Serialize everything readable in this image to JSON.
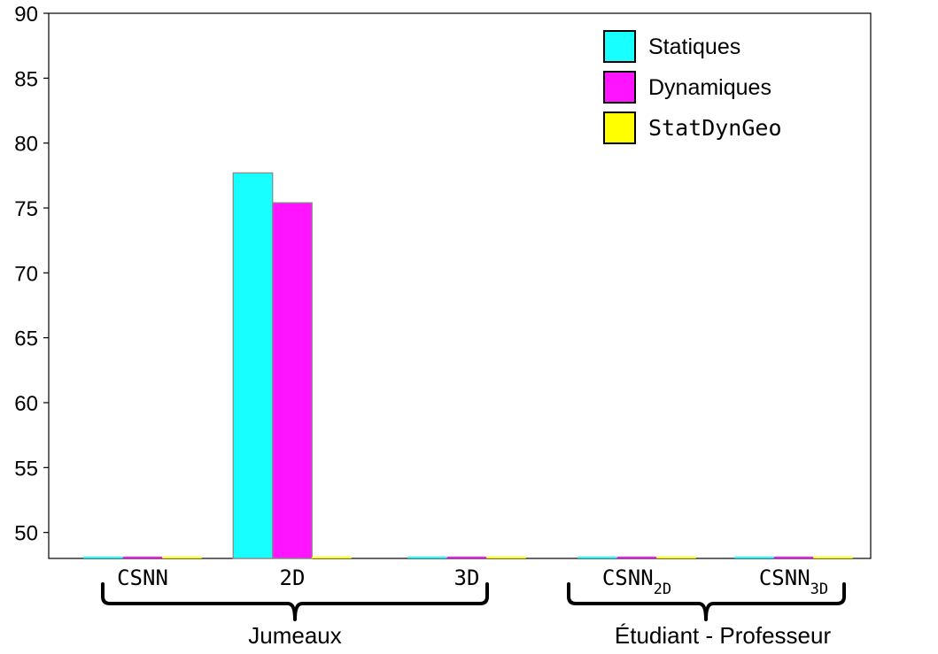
{
  "chart_data": {
    "type": "bar",
    "categories": [
      {
        "label": "CSNN",
        "sub": ""
      },
      {
        "label": "2D",
        "sub": ""
      },
      {
        "label": "3D",
        "sub": ""
      },
      {
        "label": "CSNN",
        "sub": "2D"
      },
      {
        "label": "CSNN",
        "sub": "3D"
      }
    ],
    "series": [
      {
        "name": "Statiques",
        "color": "#17ffff",
        "values": [
          null,
          77.7,
          null,
          null,
          null
        ]
      },
      {
        "name": "Dynamiques",
        "color": "#ff14ff",
        "values": [
          null,
          75.4,
          null,
          null,
          null
        ]
      },
      {
        "name": "StatDynGeo",
        "color": "#ffff00",
        "values": [
          null,
          null,
          null,
          null,
          null
        ]
      }
    ],
    "ylim": [
      48,
      90
    ],
    "yticks": [
      50,
      55,
      60,
      65,
      70,
      75,
      80,
      85,
      90
    ],
    "groups": [
      {
        "label": "Jumeaux",
        "categories": [
          0,
          1,
          2
        ]
      },
      {
        "label": "Étudiant - Professeur",
        "categories": [
          3,
          4
        ]
      }
    ],
    "legend": {
      "position": "top-right"
    },
    "grid": false
  }
}
